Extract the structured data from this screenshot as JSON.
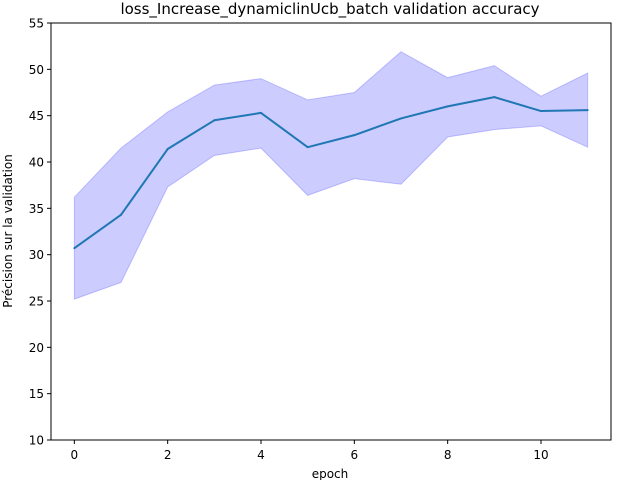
{
  "chart_data": {
    "type": "line",
    "title": "loss_Increase_dynamiclinUcb_batch validation accuracy",
    "xlabel": "epoch",
    "ylabel": "Précision sur la validation",
    "xlim": [
      -0.5,
      11.5
    ],
    "ylim": [
      10,
      55
    ],
    "xticks": [
      0,
      2,
      4,
      6,
      8,
      10
    ],
    "yticks": [
      10,
      15,
      20,
      25,
      30,
      35,
      40,
      45,
      50,
      55
    ],
    "grid": false,
    "legend": "none",
    "x": [
      0,
      1,
      2,
      3,
      4,
      5,
      6,
      7,
      8,
      9,
      10,
      11
    ],
    "series": [
      {
        "values": [
          30.7,
          34.3,
          41.4,
          44.5,
          45.3,
          41.6,
          42.9,
          44.7,
          46.0,
          47.0,
          45.5,
          45.6
        ],
        "lower": [
          25.2,
          27.0,
          37.3,
          40.7,
          41.5,
          36.4,
          38.2,
          37.6,
          42.7,
          43.5,
          43.9,
          41.6
        ],
        "upper": [
          36.2,
          41.5,
          45.4,
          48.3,
          49.0,
          46.7,
          47.5,
          51.9,
          49.1,
          50.4,
          47.1,
          49.6
        ],
        "color": "#1f77b4",
        "band_color": "#0000ff"
      }
    ]
  }
}
